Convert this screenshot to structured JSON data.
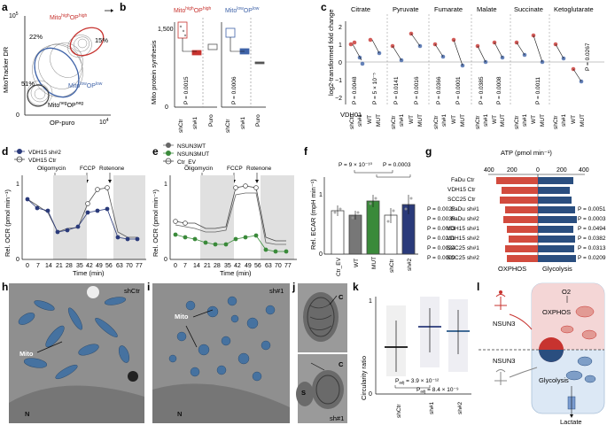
{
  "panels": {
    "a": {
      "letter": "a",
      "y_axis": "MitoTracker DR",
      "x_axis": "OP-puro",
      "x_tick_max": "10",
      "x_tick_max_exp": "4",
      "y_tick_max": "10",
      "y_tick_max_exp": "5",
      "y_tick_zero": "0",
      "gate_high": "Mito",
      "gate_high_sup1": "high",
      "gate_high_mid": "OP",
      "gate_high_sup2": "high",
      "gate_low": "Mito",
      "gate_low_sup1": "low",
      "gate_low_mid": "OP",
      "gate_low_sup2": "low",
      "gate_neg": "Mito",
      "gate_neg_sup1": "neg",
      "gate_neg_mid": "OP",
      "gate_neg_sup2": "neg",
      "pct_22": "22%",
      "pct_15": "15%",
      "pct_51": "51%",
      "colors": {
        "high": "#c7332f",
        "low": "#3f63a8",
        "neg": "#555555"
      }
    },
    "b": {
      "letter": "b",
      "y_axis": "Mito protein synthesis",
      "tick_1500": "1,500",
      "tick_0": "0",
      "left_title": "Mito",
      "left_title_sup1": "high",
      "left_title_mid": "OP",
      "left_title_sup2": "high",
      "right_title": "Mito",
      "right_title_sup1": "low",
      "right_title_mid": "OP",
      "right_title_sup2": "low",
      "p_left": "P = 0.0015",
      "p_right": "P = 0.0006",
      "categories": [
        "shCtr",
        "sh#1",
        "Puro"
      ]
    },
    "c": {
      "letter": "c",
      "y_axis": "log2-transformed fold change",
      "y_ticks": [
        "2",
        "1",
        "0",
        "−1",
        "−2"
      ],
      "metabolites": [
        "Citrate",
        "Pyruvate",
        "Fumarate",
        "Malate",
        "Succinate",
        "Ketoglutarate"
      ],
      "p_values": [
        "P = 0.0048",
        "P = 5 × 10⁻⁵",
        "P = 0.0141",
        "P = 0.0016",
        "P = 0.0366",
        "P = 0.0001",
        "P = 0.0385",
        "P = 0.0008",
        "P = 0.0011",
        "P = 0.0267"
      ],
      "categories": [
        "shCtr",
        "sh#1",
        "WT",
        "MUT"
      ],
      "vdh_label": "VDH01"
    },
    "d": {
      "letter": "d",
      "legend": [
        "VDH15 sh#2",
        "VDH15 Ctr"
      ],
      "drugs": [
        "Oligomycin",
        "FCCP",
        "Rotenone"
      ],
      "y_axis": "Rel. OCR (pmol min⁻¹)",
      "x_axis": "Time (min)",
      "y_ticks": [
        "1",
        "0"
      ],
      "x_ticks": [
        "0",
        "7",
        "14",
        "21",
        "28",
        "35",
        "42",
        "49",
        "56",
        "63",
        "70",
        "77"
      ]
    },
    "e": {
      "letter": "e",
      "legend": [
        "NSUN3WT",
        "NSUN3MUT",
        "Ctr_EV"
      ],
      "drugs": [
        "Oligomycin",
        "FCCP",
        "Rotenone"
      ],
      "y_axis": "Rel. OCR (pmol min⁻¹)",
      "x_axis": "Time (min)",
      "y_ticks": [
        "1",
        "0"
      ],
      "x_ticks": [
        "0",
        "7",
        "14",
        "21",
        "28",
        "35",
        "42",
        "49",
        "56",
        "63",
        "70",
        "77"
      ]
    },
    "f": {
      "letter": "f",
      "y_axis": "Rel. ECAR (mpH min⁻¹)",
      "y_ticks": [
        "1",
        "0"
      ],
      "p1": "P = 9 × 10⁻¹⁰",
      "p2": "P = 0.0003",
      "categories": [
        "Ctr_EV",
        "WT",
        "MUT",
        "shCtr",
        "sh#2"
      ]
    },
    "g": {
      "letter": "g",
      "x_axis": "ATP (pmol min⁻¹)",
      "x_ticks": [
        "400",
        "200",
        "0",
        "200",
        "400"
      ],
      "rows": [
        "FaDu Ctr",
        "VDH15 Ctr",
        "SCC25 Ctr",
        "FaDu sh#1",
        "FaDu sh#2",
        "VDH15 sh#1",
        "VDH15 sh#2",
        "SCC25 sh#1",
        "SCC25 sh#2"
      ],
      "left_p": [
        "",
        "",
        "",
        "P = 0.0022",
        "P = 0.0039",
        "P = 0.0083",
        "P = 0.0211",
        "P = 0.0024",
        "P = 0.0009"
      ],
      "right_p": [
        "",
        "",
        "",
        "P = 0.0051",
        "P = 0.0003",
        "P = 0.0494",
        "P = 0.0382",
        "P = 0.0313",
        "P = 0.0209"
      ],
      "footer_left": "OXPHOS",
      "footer_right": "Glycolysis"
    },
    "h": {
      "letter": "h",
      "tag": "shCtr",
      "mito": "Mito",
      "n": "N"
    },
    "i": {
      "letter": "i",
      "tag": "sh#1",
      "mito": "Mito",
      "n": "N"
    },
    "j": {
      "letter": "j",
      "c1": "C",
      "c2": "C",
      "s": "S",
      "tag": "sh#1"
    },
    "k": {
      "letter": "k",
      "y_axis": "Circularity ratio",
      "y_ticks": [
        "1",
        "0"
      ],
      "p1": "P",
      "p1_sub": "adj",
      "p1_val": " = 3.9 × 10⁻¹²",
      "p2": "P",
      "p2_sub": "adj",
      "p2_val": " = 8.4 × 10⁻⁹",
      "categories": [
        "shCtr",
        "sh#1",
        "sh#2"
      ]
    },
    "l": {
      "letter": "l",
      "o2": "O2",
      "nsun3_top": "NSUN3",
      "nsun3_bottom": "NSUN3",
      "oxphos": "OXPHOS",
      "glycolysis": "Glycolysis",
      "lactate": "Lactate"
    }
  }
}
